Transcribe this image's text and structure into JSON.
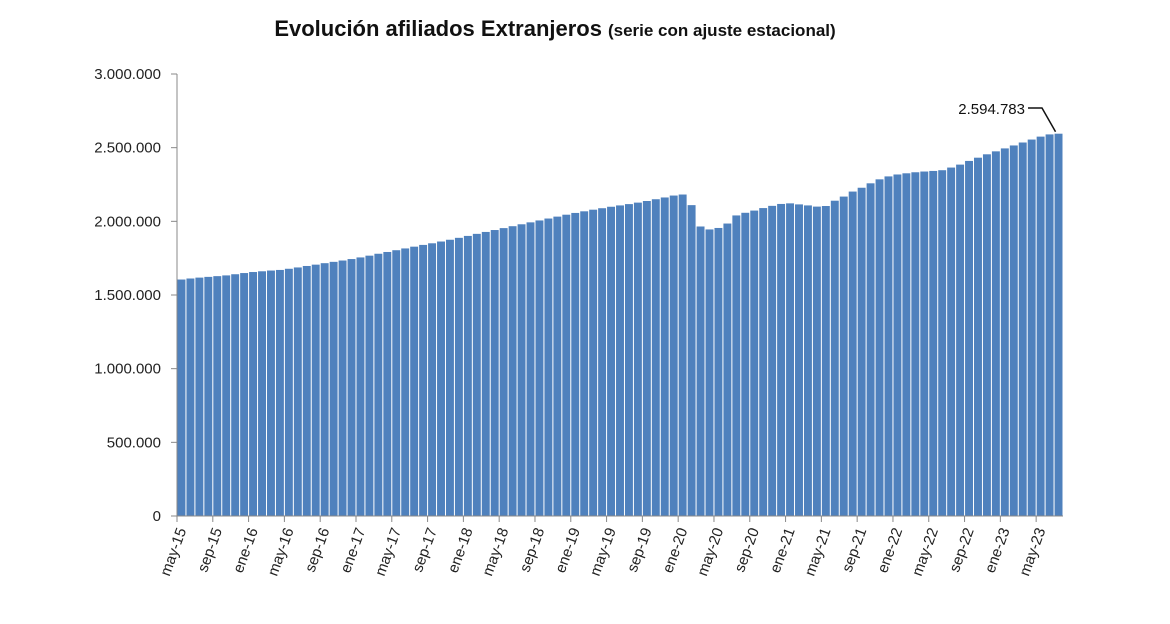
{
  "chart_data": {
    "type": "bar",
    "title": "Evolución afiliados Extranjeros",
    "subtitle": "(serie con ajuste estacional)",
    "xlabel": "",
    "ylabel": "",
    "ylim": [
      0,
      3000000
    ],
    "y_ticks": [
      "0",
      "500.000",
      "1.000.000",
      "1.500.000",
      "2.000.000",
      "2.500.000",
      "3.000.000"
    ],
    "x_tick_labels": [
      "may-15",
      "sep-15",
      "ene-16",
      "may-16",
      "sep-16",
      "ene-17",
      "may-17",
      "sep-17",
      "ene-18",
      "may-18",
      "sep-18",
      "ene-19",
      "may-19",
      "sep-19",
      "ene-20",
      "may-20",
      "sep-20",
      "ene-21",
      "may-21",
      "sep-21",
      "ene-22",
      "may-22",
      "sep-22",
      "ene-23",
      "may-23"
    ],
    "categories_start": "may-15",
    "categories_end": "may-23",
    "color": "#4F81BD",
    "grid": false,
    "legend": "none",
    "annotation": {
      "label": "2.594.783",
      "value": 2594783
    },
    "values": [
      1605000,
      1612000,
      1618000,
      1623000,
      1628000,
      1633000,
      1641000,
      1649000,
      1656000,
      1661000,
      1666000,
      1670000,
      1678000,
      1687000,
      1697000,
      1706000,
      1716000,
      1725000,
      1734000,
      1744000,
      1755000,
      1767000,
      1780000,
      1792000,
      1804000,
      1816000,
      1828000,
      1840000,
      1851000,
      1863000,
      1875000,
      1888000,
      1901000,
      1915000,
      1928000,
      1941000,
      1954000,
      1967000,
      1980000,
      1993000,
      2006000,
      2019000,
      2032000,
      2045000,
      2057000,
      2068000,
      2079000,
      2089000,
      2099000,
      2108000,
      2117000,
      2127000,
      2138000,
      2150000,
      2162000,
      2175000,
      2182000,
      2110000,
      1965000,
      1945000,
      1955000,
      1985000,
      2040000,
      2058000,
      2073000,
      2090000,
      2105000,
      2118000,
      2122000,
      2115000,
      2108000,
      2100000,
      2104000,
      2140000,
      2168000,
      2202000,
      2228000,
      2258000,
      2285000,
      2305000,
      2318000,
      2326000,
      2333000,
      2338000,
      2342000,
      2347000,
      2365000,
      2385000,
      2410000,
      2432000,
      2455000,
      2475000,
      2495000,
      2515000,
      2535000,
      2555000,
      2575000,
      2590000,
      2594783
    ]
  }
}
